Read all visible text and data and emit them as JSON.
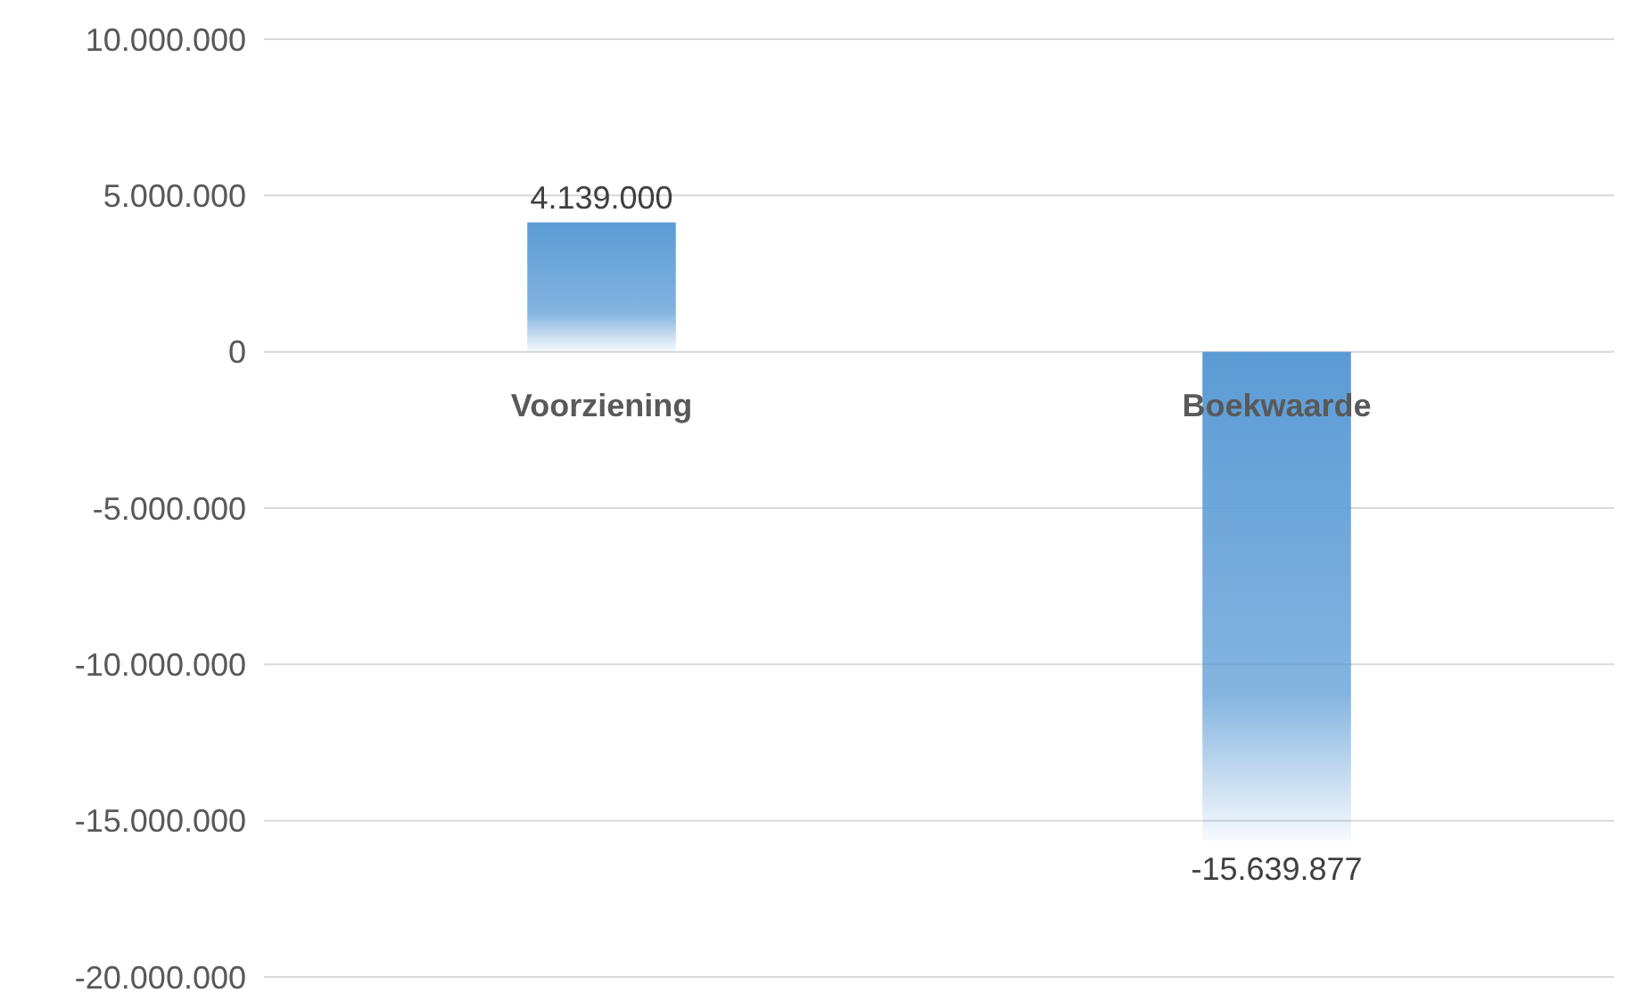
{
  "chart_data": {
    "type": "bar",
    "categories": [
      "Voorziening",
      "Boekwaarde"
    ],
    "values": [
      4139000,
      -15639877
    ],
    "value_labels": [
      "4.139.000",
      "-15.639.877"
    ],
    "color": "#5b9bd5",
    "ylim": [
      -20000000,
      10000000
    ],
    "yticks": [
      {
        "value": 10000000,
        "label": "10.000.000"
      },
      {
        "value": 5000000,
        "label": "5.000.000"
      },
      0,
      {
        "value": -5000000,
        "label": "-5.000.000"
      },
      {
        "value": -10000000,
        "label": "-10.000.000"
      },
      {
        "value": -15000000,
        "label": "-15.000.000"
      },
      {
        "value": -20000000,
        "label": "-20.000.000"
      }
    ],
    "grid": "y"
  }
}
